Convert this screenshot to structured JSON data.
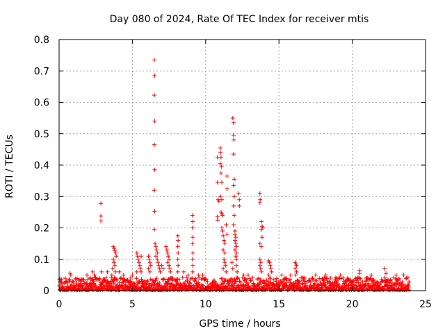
{
  "chart_data": {
    "type": "scatter",
    "title": "Day 080 of 2024, Rate Of TEC Index for receiver mtis",
    "xlabel": "GPS time / hours",
    "ylabel": "ROTI / TECUs",
    "xlim": [
      0,
      25
    ],
    "ylim": [
      0,
      0.8
    ],
    "xticks": [
      0,
      5,
      10,
      15,
      20,
      25
    ],
    "yticks": [
      0,
      0.1,
      0.2,
      0.3,
      0.4,
      0.5,
      0.6,
      0.7,
      0.8
    ],
    "xtick_labels": [
      "0",
      "5",
      "10",
      "15",
      "20",
      "25"
    ],
    "ytick_labels": [
      "0",
      "0.1",
      "0.2",
      "0.3",
      "0.4",
      "0.5",
      "0.6",
      "0.7",
      "0.8"
    ],
    "grid": true,
    "marker": "+",
    "color": "#ff0000",
    "series": [
      {
        "name": "ROTI",
        "points": [
          [
            0.75,
            0.055
          ],
          [
            0.8,
            0.05
          ],
          [
            1.9,
            0.05
          ],
          [
            2.3,
            0.06
          ],
          [
            2.4,
            0.05
          ],
          [
            2.85,
            0.278
          ],
          [
            2.85,
            0.238
          ],
          [
            2.85,
            0.222
          ],
          [
            2.9,
            0.06
          ],
          [
            3.3,
            0.06
          ],
          [
            3.7,
            0.14
          ],
          [
            3.75,
            0.135
          ],
          [
            3.8,
            0.128
          ],
          [
            3.85,
            0.12
          ],
          [
            3.9,
            0.11
          ],
          [
            3.7,
            0.1
          ],
          [
            3.75,
            0.09
          ],
          [
            3.8,
            0.08
          ],
          [
            3.65,
            0.07
          ],
          [
            3.85,
            0.06
          ],
          [
            3.6,
            0.05
          ],
          [
            4.1,
            0.06
          ],
          [
            4.4,
            0.05
          ],
          [
            5.0,
            0.05
          ],
          [
            5.3,
            0.06
          ],
          [
            5.3,
            0.12
          ],
          [
            5.35,
            0.11
          ],
          [
            5.4,
            0.1
          ],
          [
            5.45,
            0.09
          ],
          [
            5.5,
            0.08
          ],
          [
            5.55,
            0.07
          ],
          [
            5.6,
            0.11
          ],
          [
            5.6,
            0.06
          ],
          [
            6.1,
            0.11
          ],
          [
            6.15,
            0.1
          ],
          [
            6.2,
            0.09
          ],
          [
            6.25,
            0.08
          ],
          [
            6.1,
            0.07
          ],
          [
            6.2,
            0.06
          ],
          [
            6.5,
            0.735
          ],
          [
            6.52,
            0.685
          ],
          [
            6.5,
            0.623
          ],
          [
            6.52,
            0.54
          ],
          [
            6.5,
            0.465
          ],
          [
            6.52,
            0.385
          ],
          [
            6.5,
            0.32
          ],
          [
            6.52,
            0.253
          ],
          [
            6.5,
            0.195
          ],
          [
            6.55,
            0.15
          ],
          [
            6.6,
            0.14
          ],
          [
            6.65,
            0.13
          ],
          [
            6.7,
            0.12
          ],
          [
            6.6,
            0.11
          ],
          [
            6.7,
            0.1
          ],
          [
            6.75,
            0.09
          ],
          [
            6.8,
            0.08
          ],
          [
            6.85,
            0.07
          ],
          [
            6.9,
            0.06
          ],
          [
            7.0,
            0.08
          ],
          [
            7.1,
            0.07
          ],
          [
            7.3,
            0.14
          ],
          [
            7.35,
            0.13
          ],
          [
            7.4,
            0.12
          ],
          [
            7.45,
            0.11
          ],
          [
            7.5,
            0.1
          ],
          [
            7.4,
            0.09
          ],
          [
            7.5,
            0.08
          ],
          [
            7.55,
            0.07
          ],
          [
            7.6,
            0.06
          ],
          [
            8.1,
            0.175
          ],
          [
            8.12,
            0.16
          ],
          [
            8.1,
            0.14
          ],
          [
            8.12,
            0.12
          ],
          [
            8.1,
            0.1
          ],
          [
            8.12,
            0.08
          ],
          [
            8.1,
            0.06
          ],
          [
            8.5,
            0.06
          ],
          [
            8.8,
            0.05
          ],
          [
            9.1,
            0.24
          ],
          [
            9.12,
            0.22
          ],
          [
            9.1,
            0.2
          ],
          [
            9.12,
            0.17
          ],
          [
            9.1,
            0.15
          ],
          [
            9.12,
            0.12
          ],
          [
            9.1,
            0.1
          ],
          [
            9.12,
            0.08
          ],
          [
            9.1,
            0.06
          ],
          [
            9.5,
            0.05
          ],
          [
            9.8,
            0.05
          ],
          [
            10.8,
            0.425
          ],
          [
            10.8,
            0.345
          ],
          [
            10.85,
            0.29
          ],
          [
            10.8,
            0.235
          ],
          [
            10.82,
            0.225
          ],
          [
            10.9,
            0.285
          ],
          [
            11.0,
            0.455
          ],
          [
            11.02,
            0.44
          ],
          [
            11.05,
            0.425
          ],
          [
            11.0,
            0.405
          ],
          [
            11.08,
            0.395
          ],
          [
            11.05,
            0.375
          ],
          [
            11.1,
            0.345
          ],
          [
            11.0,
            0.3
          ],
          [
            11.1,
            0.29
          ],
          [
            11.05,
            0.25
          ],
          [
            11.1,
            0.245
          ],
          [
            11.15,
            0.24
          ],
          [
            11.1,
            0.2
          ],
          [
            11.15,
            0.19
          ],
          [
            11.2,
            0.175
          ],
          [
            11.25,
            0.16
          ],
          [
            11.3,
            0.15
          ],
          [
            11.2,
            0.13
          ],
          [
            11.3,
            0.12
          ],
          [
            11.25,
            0.1
          ],
          [
            11.3,
            0.09
          ],
          [
            11.35,
            0.08
          ],
          [
            11.2,
            0.07
          ],
          [
            11.4,
            0.06
          ],
          [
            11.45,
            0.365
          ],
          [
            11.45,
            0.325
          ],
          [
            11.4,
            0.21
          ],
          [
            11.45,
            0.18
          ],
          [
            11.85,
            0.55
          ],
          [
            11.9,
            0.535
          ],
          [
            11.9,
            0.495
          ],
          [
            11.92,
            0.48
          ],
          [
            11.9,
            0.435
          ],
          [
            11.95,
            0.355
          ],
          [
            11.9,
            0.335
          ],
          [
            11.95,
            0.3
          ],
          [
            11.9,
            0.27
          ],
          [
            11.95,
            0.24
          ],
          [
            11.9,
            0.21
          ],
          [
            12.0,
            0.19
          ],
          [
            12.0,
            0.18
          ],
          [
            12.05,
            0.17
          ],
          [
            12.0,
            0.16
          ],
          [
            12.05,
            0.15
          ],
          [
            12.1,
            0.14
          ],
          [
            12.0,
            0.13
          ],
          [
            12.1,
            0.12
          ],
          [
            12.05,
            0.11
          ],
          [
            12.1,
            0.1
          ],
          [
            11.8,
            0.09
          ],
          [
            12.1,
            0.08
          ],
          [
            11.85,
            0.07
          ],
          [
            12.15,
            0.06
          ],
          [
            12.25,
            0.31
          ],
          [
            12.3,
            0.29
          ],
          [
            12.3,
            0.27
          ],
          [
            12.6,
            0.05
          ],
          [
            12.9,
            0.05
          ],
          [
            13.7,
            0.31
          ],
          [
            13.72,
            0.29
          ],
          [
            13.7,
            0.28
          ],
          [
            13.8,
            0.22
          ],
          [
            13.85,
            0.205
          ],
          [
            13.8,
            0.195
          ],
          [
            13.9,
            0.2
          ],
          [
            13.85,
            0.17
          ],
          [
            13.7,
            0.15
          ],
          [
            13.8,
            0.14
          ],
          [
            13.7,
            0.1
          ],
          [
            13.75,
            0.09
          ],
          [
            13.7,
            0.08
          ],
          [
            13.75,
            0.07
          ],
          [
            13.8,
            0.06
          ],
          [
            14.3,
            0.095
          ],
          [
            14.35,
            0.09
          ],
          [
            14.4,
            0.08
          ],
          [
            14.45,
            0.07
          ],
          [
            14.5,
            0.06
          ],
          [
            14.3,
            0.05
          ],
          [
            15.2,
            0.05
          ],
          [
            15.8,
            0.05
          ],
          [
            16.1,
            0.09
          ],
          [
            16.15,
            0.085
          ],
          [
            16.2,
            0.08
          ],
          [
            16.1,
            0.07
          ],
          [
            16.2,
            0.06
          ],
          [
            16.15,
            0.05
          ],
          [
            17.5,
            0.05
          ],
          [
            18.2,
            0.05
          ],
          [
            19.2,
            0.05
          ],
          [
            20.5,
            0.065
          ],
          [
            20.5,
            0.055
          ],
          [
            21.3,
            0.05
          ],
          [
            22.2,
            0.07
          ],
          [
            22.3,
            0.055
          ],
          [
            23.0,
            0.05
          ],
          [
            23.5,
            0.05
          ]
        ],
        "baseline_band": {
          "x_range": [
            0,
            23.9
          ],
          "y_range": [
            0.0,
            0.04
          ]
        }
      }
    ]
  }
}
